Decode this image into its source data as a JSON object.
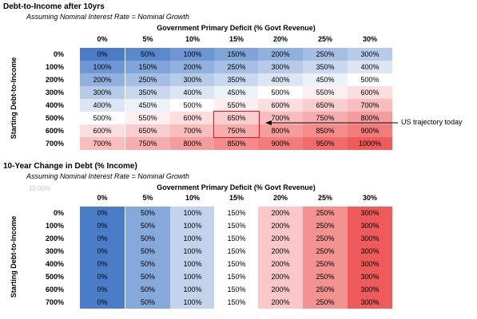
{
  "chart_data": [
    {
      "type": "heatmap",
      "title": "Debt-to-Income after 10yrs",
      "subtitle": "Assuming Nominal Interest Rate = Nominal Growth",
      "xlabel": "Government Primary Deficit (% Govt Revenue)",
      "ylabel": "Starting Debt-to-Income",
      "columns": [
        "0%",
        "5%",
        "10%",
        "15%",
        "20%",
        "25%",
        "30%"
      ],
      "rows": [
        "0%",
        "100%",
        "200%",
        "300%",
        "400%",
        "500%",
        "600%",
        "700%"
      ],
      "values": [
        [
          "0%",
          "50%",
          "100%",
          "150%",
          "200%",
          "250%",
          "300%"
        ],
        [
          "100%",
          "150%",
          "200%",
          "250%",
          "300%",
          "350%",
          "400%"
        ],
        [
          "200%",
          "250%",
          "300%",
          "350%",
          "400%",
          "450%",
          "500%"
        ],
        [
          "300%",
          "350%",
          "400%",
          "450%",
          "500%",
          "550%",
          "600%"
        ],
        [
          "400%",
          "450%",
          "500%",
          "550%",
          "600%",
          "650%",
          "700%"
        ],
        [
          "500%",
          "550%",
          "600%",
          "650%",
          "700%",
          "750%",
          "800%"
        ],
        [
          "600%",
          "650%",
          "700%",
          "750%",
          "800%",
          "850%",
          "900%"
        ],
        [
          "700%",
          "750%",
          "800%",
          "850%",
          "900%",
          "950%",
          "1000%"
        ]
      ],
      "highlight": {
        "rows": [
          "500%",
          "600%"
        ],
        "column": "15%",
        "color": "#e8141a"
      },
      "annotation": "US trajectory today",
      "color_low": "#4a7cc7",
      "color_mid": "#ffffff",
      "color_high": "#ef5a5a"
    },
    {
      "type": "heatmap",
      "title": "10-Year Change in Debt (% Income)",
      "subtitle": "Assuming Nominal Interest Rate = Nominal Growth",
      "faint_label": "12.00%",
      "xlabel": "Government Primary Deficit (% Govt Revenue)",
      "ylabel": "Starting Debt-to-Income",
      "columns": [
        "0%",
        "5%",
        "10%",
        "15%",
        "20%",
        "25%",
        "30%"
      ],
      "rows": [
        "0%",
        "100%",
        "200%",
        "300%",
        "400%",
        "500%",
        "600%",
        "700%"
      ],
      "values": [
        [
          "0%",
          "50%",
          "100%",
          "150%",
          "200%",
          "250%",
          "300%"
        ],
        [
          "0%",
          "50%",
          "100%",
          "150%",
          "200%",
          "250%",
          "300%"
        ],
        [
          "0%",
          "50%",
          "100%",
          "150%",
          "200%",
          "250%",
          "300%"
        ],
        [
          "0%",
          "50%",
          "100%",
          "150%",
          "200%",
          "250%",
          "300%"
        ],
        [
          "0%",
          "50%",
          "100%",
          "150%",
          "200%",
          "250%",
          "300%"
        ],
        [
          "0%",
          "50%",
          "100%",
          "150%",
          "200%",
          "250%",
          "300%"
        ],
        [
          "0%",
          "50%",
          "100%",
          "150%",
          "200%",
          "250%",
          "300%"
        ],
        [
          "0%",
          "50%",
          "100%",
          "150%",
          "200%",
          "250%",
          "300%"
        ]
      ],
      "color_low": "#4a7cc7",
      "color_mid": "#ffffff",
      "color_high": "#ef5a5a"
    }
  ]
}
